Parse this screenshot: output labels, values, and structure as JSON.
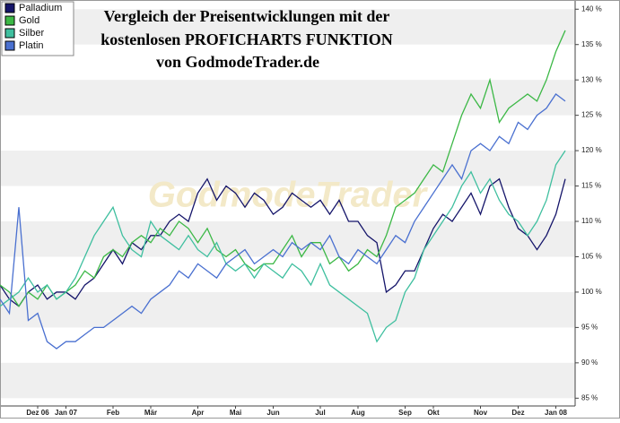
{
  "chart_data": {
    "type": "line",
    "title": [
      "Vergleich der Preisentwicklungen mit der",
      "kostenlosen PROFICHARTS FUNKTION",
      "von GodmodeTrader.de"
    ],
    "watermark": "GodmodeTrader",
    "categories": [
      null,
      null,
      null,
      null,
      "Dez 06",
      null,
      null,
      "Jan 07",
      null,
      null,
      null,
      null,
      "Feb",
      null,
      null,
      null,
      "Mär",
      null,
      null,
      null,
      null,
      "Apr",
      null,
      null,
      null,
      "Mai",
      null,
      null,
      null,
      "Jun",
      null,
      null,
      null,
      null,
      "Jul",
      null,
      null,
      null,
      "Aug",
      null,
      null,
      null,
      null,
      "Sep",
      null,
      null,
      "Okt",
      null,
      null,
      null,
      null,
      "Nov",
      null,
      null,
      null,
      "Dez",
      null,
      null,
      null,
      "Jan 08",
      null
    ],
    "series": [
      {
        "name": "Palladium",
        "color": "#15156a",
        "values": [
          101,
          99,
          98,
          100,
          101,
          99,
          100,
          100,
          99,
          101,
          102,
          104,
          106,
          104,
          107,
          106,
          108,
          108,
          110,
          111,
          110,
          114,
          116,
          113,
          115,
          114,
          112,
          114,
          113,
          111,
          112,
          114,
          113,
          112,
          113,
          111,
          113,
          110,
          110,
          108,
          107,
          100,
          101,
          103,
          103,
          106,
          109,
          111,
          110,
          112,
          114,
          111,
          115,
          116,
          112,
          109,
          108,
          106,
          108,
          111,
          116
        ]
      },
      {
        "name": "Gold",
        "color": "#3cb846",
        "values": [
          101,
          100,
          98,
          100,
          99,
          101,
          99,
          100,
          101,
          103,
          102,
          105,
          106,
          105,
          107,
          108,
          107,
          109,
          108,
          110,
          109,
          107,
          109,
          106,
          105,
          106,
          104,
          103,
          104,
          104,
          106,
          108,
          105,
          107,
          107,
          104,
          105,
          103,
          104,
          106,
          105,
          108,
          112,
          113,
          114,
          116,
          118,
          117,
          121,
          125,
          128,
          126,
          130,
          124,
          126,
          127,
          128,
          127,
          130,
          134,
          137
        ]
      },
      {
        "name": "Silber",
        "color": "#3fbf9f",
        "values": [
          98,
          99,
          100,
          102,
          100,
          101,
          99,
          100,
          102,
          105,
          108,
          110,
          112,
          108,
          106,
          105,
          110,
          108,
          107,
          106,
          108,
          106,
          105,
          107,
          104,
          103,
          104,
          102,
          104,
          103,
          102,
          104,
          103,
          101,
          104,
          101,
          100,
          99,
          98,
          97,
          93,
          95,
          96,
          100,
          102,
          106,
          108,
          110,
          112,
          115,
          117,
          114,
          116,
          113,
          111,
          110,
          108,
          110,
          113,
          118,
          120
        ]
      },
      {
        "name": "Platin",
        "color": "#4a70d0",
        "values": [
          99,
          97,
          112,
          96,
          97,
          93,
          92,
          93,
          93,
          94,
          95,
          95,
          96,
          97,
          98,
          97,
          99,
          100,
          101,
          103,
          102,
          104,
          103,
          102,
          104,
          105,
          106,
          104,
          105,
          106,
          105,
          107,
          106,
          107,
          106,
          108,
          105,
          104,
          106,
          105,
          104,
          106,
          108,
          107,
          110,
          112,
          114,
          116,
          118,
          116,
          120,
          121,
          120,
          122,
          121,
          124,
          123,
          125,
          126,
          128,
          127
        ]
      }
    ],
    "ylim": [
      83.9,
      141.3
    ],
    "yticks": [
      {
        "value": 85,
        "label": "85 %"
      },
      {
        "value": 90,
        "label": "90 %"
      },
      {
        "value": 95,
        "label": "95 %"
      },
      {
        "value": 100,
        "label": "100 %"
      },
      {
        "value": 105,
        "label": "105 %"
      },
      {
        "value": 110,
        "label": "110 %"
      },
      {
        "value": 115,
        "label": "115 %"
      },
      {
        "value": 120,
        "label": "120 %"
      },
      {
        "value": 125,
        "label": "125 %"
      },
      {
        "value": 130,
        "label": "130 %"
      },
      {
        "value": 135,
        "label": "135 %"
      },
      {
        "value": 140,
        "label": "140 %"
      }
    ],
    "grid": true
  }
}
